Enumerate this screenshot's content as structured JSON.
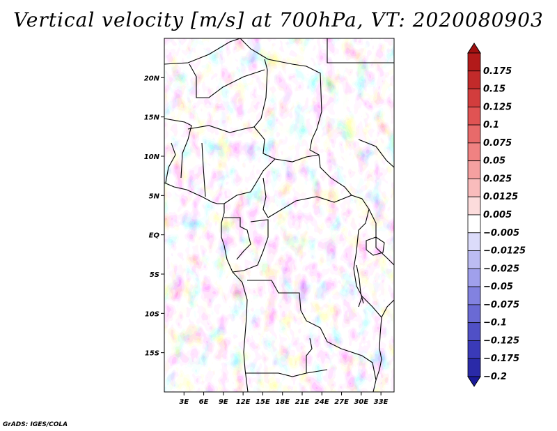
{
  "title": "Vertical velocity [m/s] at 700hPa, VT: 2020080903",
  "credit": "GrADS: IGES/COLA",
  "map": {
    "lat_range": [
      -20,
      25
    ],
    "lon_range": [
      0,
      35
    ],
    "lat_ticks": [
      {
        "value": 20,
        "label": "20N"
      },
      {
        "value": 15,
        "label": "15N"
      },
      {
        "value": 10,
        "label": "10N"
      },
      {
        "value": 5,
        "label": "5N"
      },
      {
        "value": 0,
        "label": "EQ"
      },
      {
        "value": -5,
        "label": "5S"
      },
      {
        "value": -10,
        "label": "10S"
      },
      {
        "value": -15,
        "label": "15S"
      }
    ],
    "lon_ticks": [
      {
        "value": 3,
        "label": "3E"
      },
      {
        "value": 6,
        "label": "6E"
      },
      {
        "value": 9,
        "label": "9E"
      },
      {
        "value": 12,
        "label": "12E"
      },
      {
        "value": 15,
        "label": "15E"
      },
      {
        "value": 18,
        "label": "18E"
      },
      {
        "value": 21,
        "label": "21E"
      },
      {
        "value": 24,
        "label": "24E"
      },
      {
        "value": 27,
        "label": "27E"
      },
      {
        "value": 30,
        "label": "30E"
      },
      {
        "value": 33,
        "label": "33E"
      }
    ]
  },
  "colorbar": {
    "levels": [
      {
        "label": "0.175",
        "color": "#b21a1a"
      },
      {
        "label": "0.15",
        "color": "#c22a2a"
      },
      {
        "label": "0.125",
        "color": "#d23d3d"
      },
      {
        "label": "0.1",
        "color": "#e05353"
      },
      {
        "label": "0.075",
        "color": "#e86a6a"
      },
      {
        "label": "0.05",
        "color": "#f08282"
      },
      {
        "label": "0.025",
        "color": "#f5a0a0"
      },
      {
        "label": "0.0125",
        "color": "#f9bcbc"
      },
      {
        "label": "0.005",
        "color": "#fcdcdc"
      },
      {
        "label": "−0.005",
        "color": "#ffffff"
      },
      {
        "label": "−0.0125",
        "color": "#dcdcfa"
      },
      {
        "label": "−0.025",
        "color": "#bcbcf2"
      },
      {
        "label": "−0.05",
        "color": "#a0a0ec"
      },
      {
        "label": "−0.075",
        "color": "#8282e0"
      },
      {
        "label": "−0.1",
        "color": "#6a6ad4"
      },
      {
        "label": "−0.125",
        "color": "#5050c6"
      },
      {
        "label": "−0.175",
        "color": "#3a3ab8"
      },
      {
        "label": "−0.2",
        "color": "#2a2aa8"
      }
    ],
    "max_color": "#a01010",
    "min_color": "#1a1a9a"
  }
}
